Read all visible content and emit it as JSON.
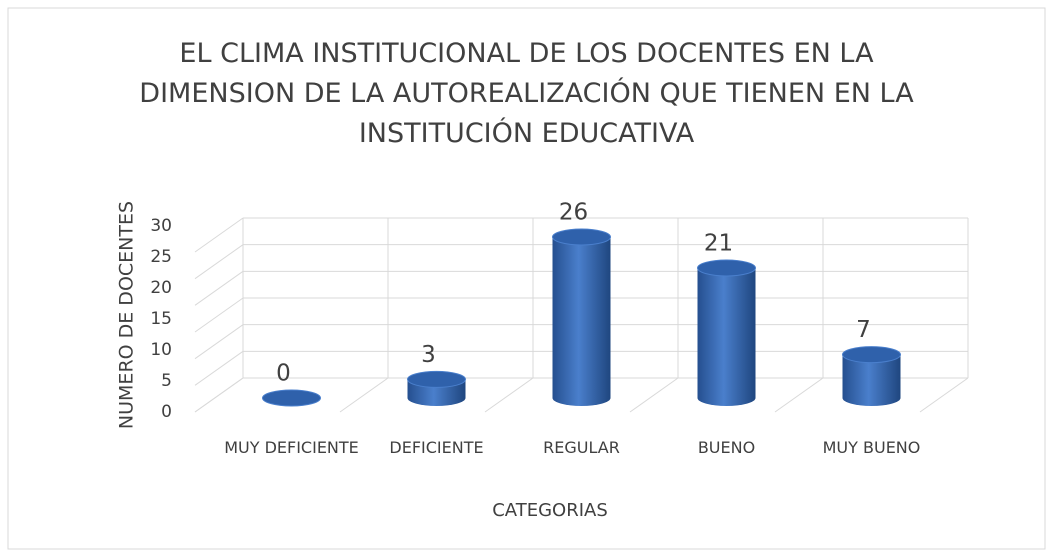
{
  "chart_data": {
    "type": "bar3d",
    "title": "EL CLIMA INSTITUCIONAL DE LOS DOCENTES EN LA DIMENSION DE LA AUTOREALIZACIÓN QUE TIENEN EN LA INSTITUCIÓN EDUCATIVA",
    "x_label": "CATEGORIAS",
    "y_label": "NUMERO DE DOCENTES",
    "categories": [
      "MUY DEFICIENTE",
      "DEFICIENTE",
      "REGULAR",
      "BUENO",
      "MUY BUENO"
    ],
    "values": [
      0,
      3,
      26,
      21,
      7
    ],
    "color": "#3d6fb8",
    "ylim": [
      0,
      30
    ],
    "yticks": [
      0,
      5,
      10,
      15,
      20,
      25,
      30
    ],
    "grid": true
  }
}
